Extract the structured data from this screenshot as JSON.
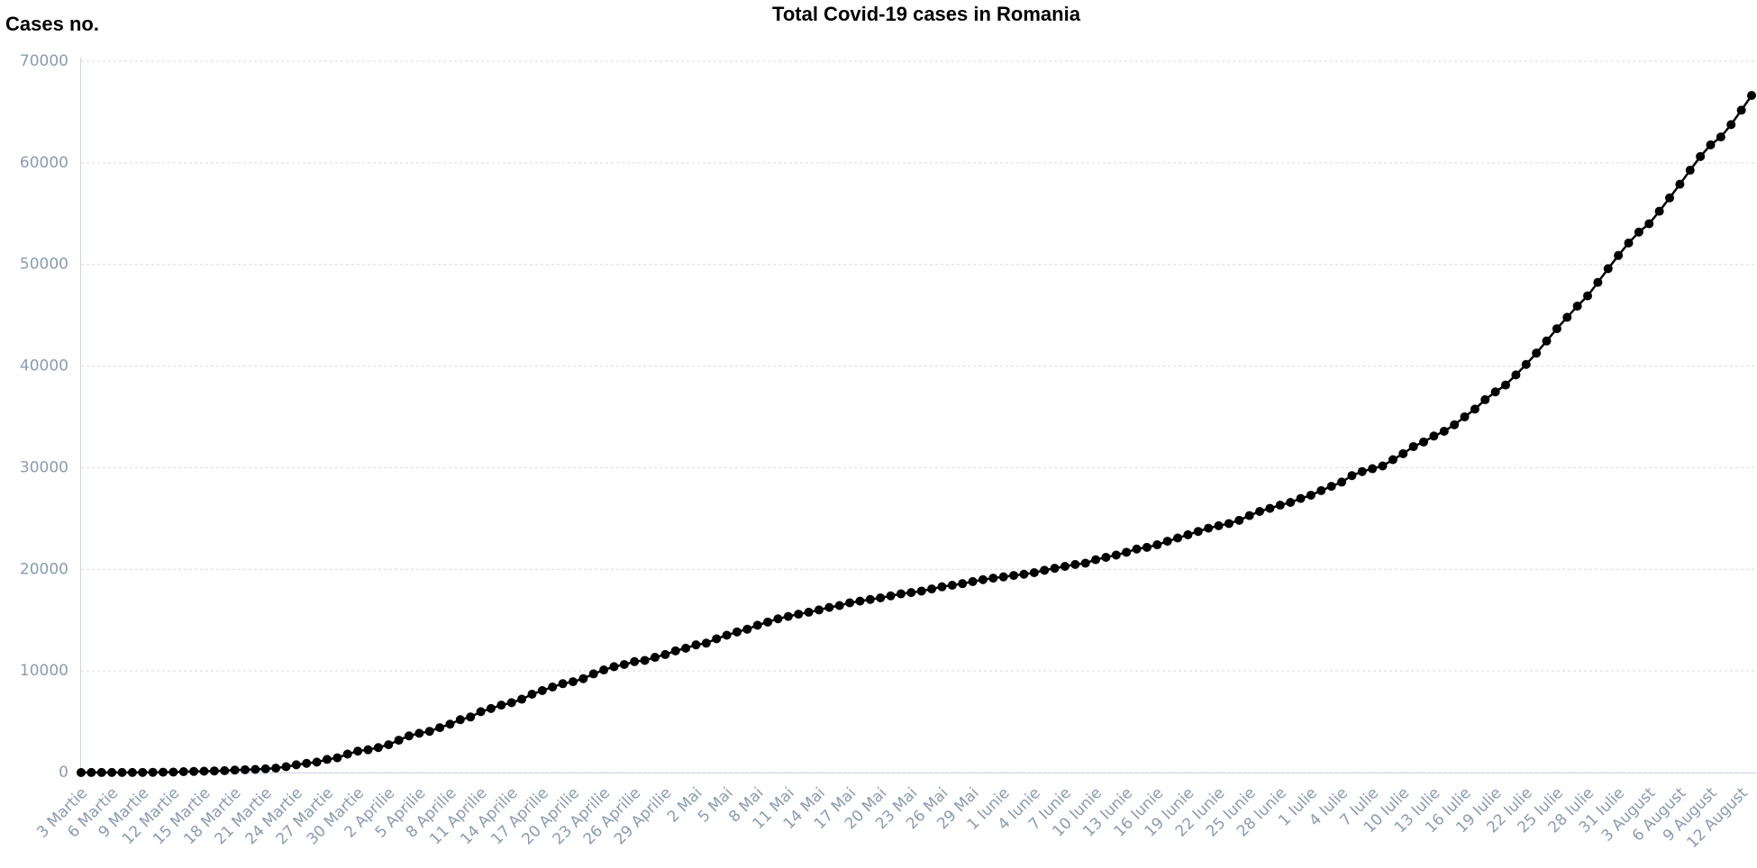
{
  "chart_data": {
    "type": "line",
    "title": "Total Covid-19 cases in Romania",
    "y_label": "Cases no.",
    "categories": [
      "3 Martie",
      null,
      null,
      "6 Martie",
      null,
      null,
      "9 Martie",
      null,
      null,
      "12 Martie",
      null,
      null,
      "15 Martie",
      null,
      null,
      "18 Martie",
      null,
      null,
      "21 Martie",
      null,
      null,
      "24 Martie",
      null,
      null,
      "27 Martie",
      null,
      null,
      "30 Martie",
      null,
      null,
      "2 Aprilie",
      null,
      null,
      "5 Aprilie",
      null,
      null,
      "8 Aprilie",
      null,
      null,
      "11 Aprilie",
      null,
      null,
      "14 Aprilie",
      null,
      null,
      "17 Aprilie",
      null,
      null,
      "20 Aprilie",
      null,
      null,
      "23 Aprilie",
      null,
      null,
      "26 Aprilie",
      null,
      null,
      "29 Aprilie",
      null,
      null,
      "2 Mai",
      null,
      null,
      "5 Mai",
      null,
      null,
      "8 Mai",
      null,
      null,
      "11 Mai",
      null,
      null,
      "14 Mai",
      null,
      null,
      "17 Mai",
      null,
      null,
      "20 Mai",
      null,
      null,
      "23 Mai",
      null,
      null,
      "26 Mai",
      null,
      null,
      "29 Mai",
      null,
      null,
      "1 Iunie",
      null,
      null,
      "4 Iunie",
      null,
      null,
      "7 Iunie",
      null,
      null,
      "10 Iunie",
      null,
      null,
      "13 Iunie",
      null,
      null,
      "16 Iunie",
      null,
      null,
      "19 Iunie",
      null,
      null,
      "22 Iunie",
      null,
      null,
      "25 Iunie",
      null,
      null,
      "28 Iunie",
      null,
      null,
      "1 Iulie",
      null,
      null,
      "4 Iulie",
      null,
      null,
      "7 Iulie",
      null,
      null,
      "10 Iulie",
      null,
      null,
      "13 Iulie",
      null,
      null,
      "16 Iulie",
      null,
      null,
      "19 Iulie",
      null,
      null,
      "22 Iulie",
      null,
      null,
      "25 Iulie",
      null,
      null,
      "28 Iulie",
      null,
      null,
      "31 Iulie",
      null,
      null,
      "3 August",
      null,
      null,
      "6 August",
      null,
      null,
      "9 August",
      null,
      null,
      "12 August",
      null
    ],
    "series": [
      {
        "color": "#000000",
        "values": [
          4,
          6,
          7,
          9,
          11,
          13,
          15,
          25,
          36,
          49,
          89,
          113,
          131,
          158,
          184,
          246,
          277,
          308,
          367,
          433,
          576,
          762,
          906,
          1029,
          1292,
          1452,
          1815,
          2109,
          2245,
          2460,
          2738,
          3183,
          3613,
          3864,
          4057,
          4417,
          4761,
          5202,
          5467,
          5990,
          6300,
          6633,
          6879,
          7216,
          7707,
          8067,
          8418,
          8746,
          8936,
          9242,
          9710,
          10096,
          10417,
          10635,
          10917,
          11036,
          11339,
          11616,
          11978,
          12240,
          12567,
          12732,
          13163,
          13512,
          13837,
          14107,
          14499,
          14811,
          15131,
          15362,
          15588,
          15778,
          16002,
          16247,
          16437,
          16704,
          16871,
          17036,
          17191,
          17387,
          17585,
          17712,
          17857,
          18070,
          18283,
          18429,
          18594,
          18791,
          18982,
          19133,
          19257,
          19398,
          19517,
          19669,
          19907,
          20103,
          20290,
          20479,
          20604,
          20945,
          21182,
          21404,
          21679,
          21999,
          22165,
          22415,
          22760,
          23080,
          23400,
          23730,
          24045,
          24291,
          24505,
          24826,
          25286,
          25697,
          25999,
          26313,
          26582,
          26970,
          27296,
          27746,
          28166,
          28582,
          29223,
          29620,
          29900,
          30175,
          30789,
          31381,
          32079,
          32535,
          33112,
          33585,
          34226,
          35003,
          35762,
          36691,
          37458,
          38139,
          39133,
          40163,
          41275,
          42473,
          43678,
          44798,
          45902,
          46911,
          48235,
          49591,
          50886,
          52111,
          53186,
          54008,
          55241,
          56550,
          57895,
          59273,
          60623,
          61768,
          62547,
          63762,
          65177,
          66631
        ]
      }
    ],
    "ylim": [
      0,
      70000
    ],
    "yticks": [
      0,
      10000,
      20000,
      30000,
      40000,
      50000,
      60000,
      70000
    ],
    "grid": true
  }
}
